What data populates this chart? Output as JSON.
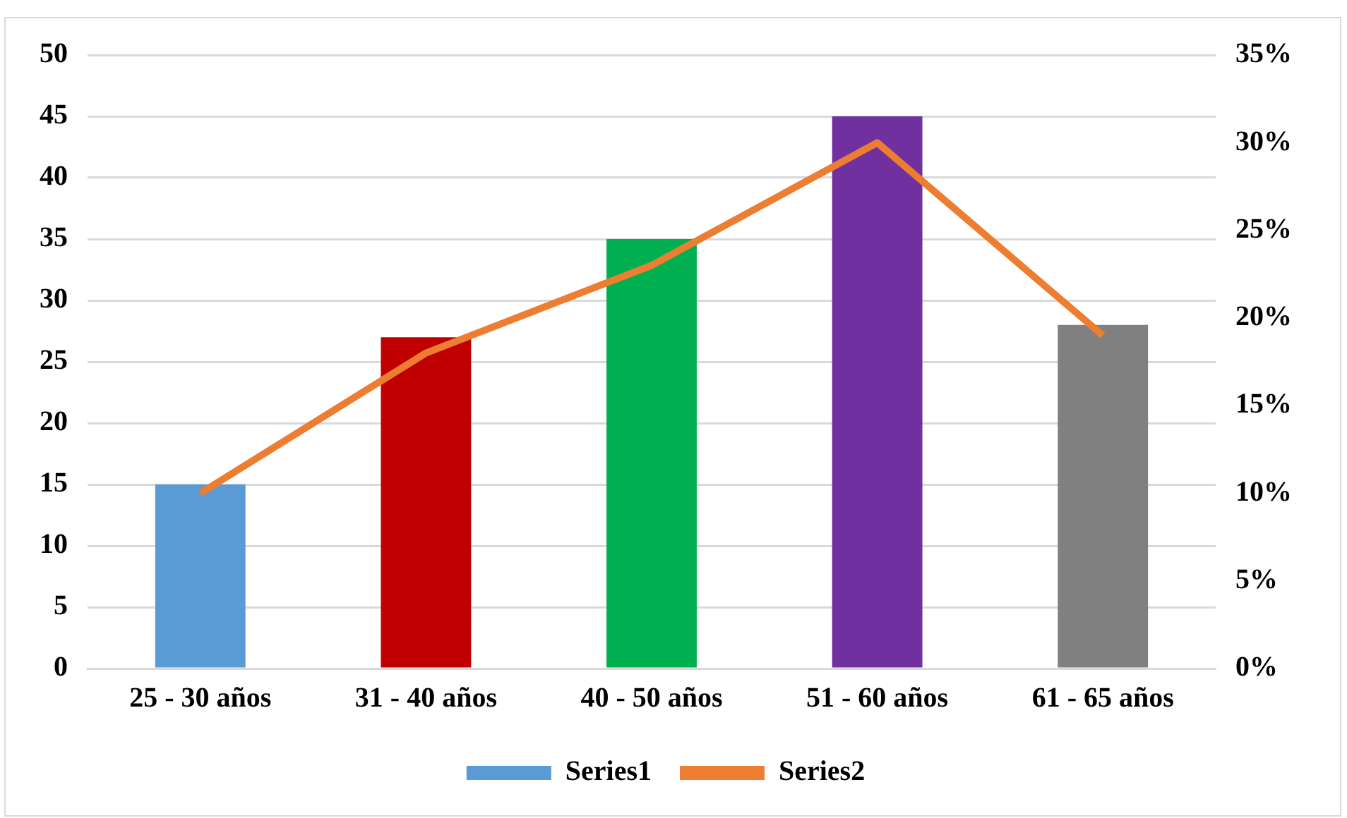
{
  "chart_data": {
    "type": "bar",
    "categories": [
      "25 - 30 años",
      "31 - 40 años",
      "40 - 50 años",
      "51 - 60 años",
      "61 - 65 años"
    ],
    "series": [
      {
        "name": "Series1",
        "color": "#5b9bd5",
        "colors": [
          "#5b9bd5",
          "#c00000",
          "#00b050",
          "#7030a0",
          "#808080"
        ],
        "values": [
          15,
          27,
          35,
          45,
          28
        ]
      },
      {
        "name": "Series2",
        "type": "line",
        "axis": "y2",
        "color": "#ed7d31",
        "values": [
          10,
          18,
          23,
          30,
          19
        ]
      }
    ],
    "ylim": [
      0,
      50
    ],
    "yticks": [
      0,
      5,
      10,
      15,
      20,
      25,
      30,
      35,
      40,
      45,
      50
    ],
    "y2lim": [
      0,
      35
    ],
    "y2ticks": [
      {
        "value": 0,
        "label": "0%"
      },
      {
        "value": 5,
        "label": "5%"
      },
      {
        "value": 10,
        "label": "10%"
      },
      {
        "value": 15,
        "label": "15%"
      },
      {
        "value": 20,
        "label": "20%"
      },
      {
        "value": 25,
        "label": "25%"
      },
      {
        "value": 30,
        "label": "30%"
      },
      {
        "value": 35,
        "label": "35%"
      }
    ],
    "grid": "y",
    "legend": "bottom",
    "marker": "none"
  }
}
